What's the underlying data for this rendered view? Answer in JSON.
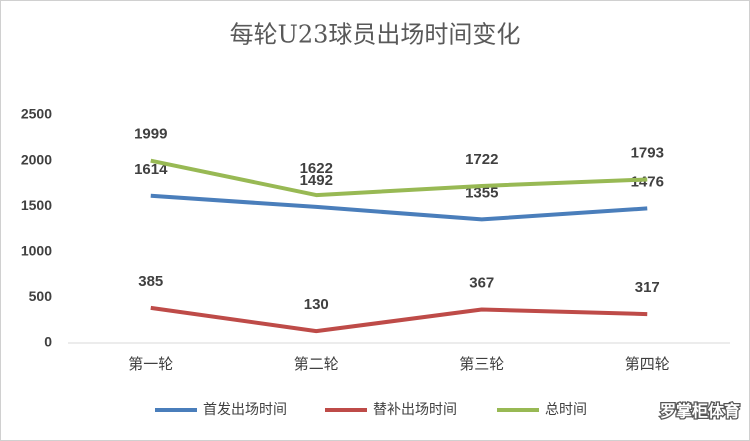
{
  "chart_data": {
    "type": "line",
    "title": "每轮U23球员出场时间变化",
    "categories": [
      "第一轮",
      "第二轮",
      "第三轮",
      "第四轮"
    ],
    "series": [
      {
        "name": "首发出场时间",
        "color": "#4a7ebb",
        "values": [
          1614,
          1492,
          1355,
          1476
        ]
      },
      {
        "name": "替补出场时间",
        "color": "#be4b48",
        "values": [
          385,
          130,
          367,
          317
        ]
      },
      {
        "name": "总时间",
        "color": "#98b954",
        "values": [
          1999,
          1622,
          1722,
          1793
        ]
      }
    ],
    "ylim": [
      0,
      2500
    ],
    "yticks": [
      0,
      500,
      1000,
      1500,
      2000,
      2500
    ],
    "grid": false,
    "legend": "bottom",
    "watermark": "罗掌柜体育"
  }
}
